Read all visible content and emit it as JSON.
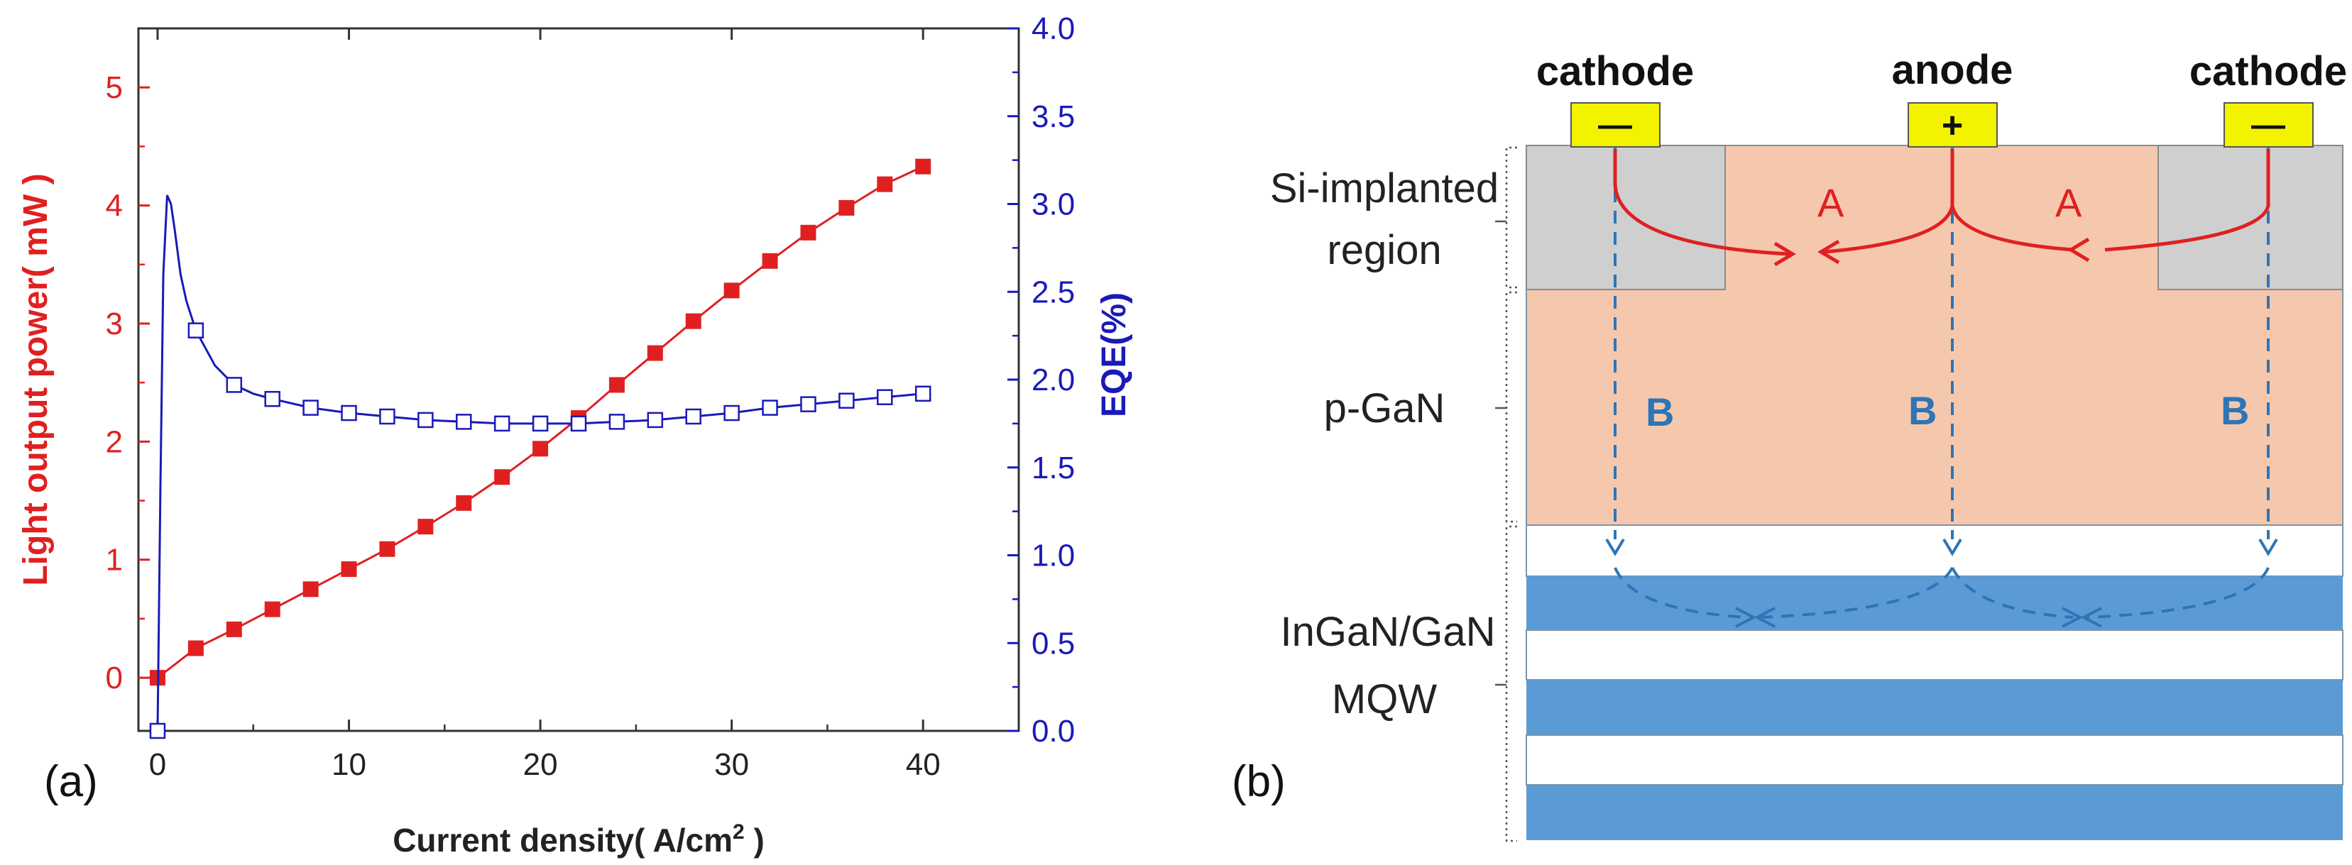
{
  "chart_data": [
    {
      "type": "line",
      "panel_label": "(a)",
      "xlabel": "Current density( A/cm",
      "xlabel_sup": "2",
      "xlabel_tail": " )",
      "ylabel_left": "Light output power( mW )",
      "ylabel_right": "EQE(%)",
      "xlim": [
        -1,
        45
      ],
      "ylim_left": [
        -0.45,
        5.5
      ],
      "ylim_right": [
        0,
        4
      ],
      "x_ticks": [
        "0",
        "10",
        "20",
        "30",
        "40"
      ],
      "x_tick_values": [
        0,
        10,
        20,
        30,
        40
      ],
      "y_left_ticks": [
        "0",
        "1",
        "2",
        "3",
        "4",
        "5"
      ],
      "y_left_tick_values": [
        0,
        1,
        2,
        3,
        4,
        5
      ],
      "y_right_ticks": [
        "0.0",
        "0.5",
        "1.0",
        "1.5",
        "2.0",
        "2.5",
        "3.0",
        "3.5",
        "4.0"
      ],
      "y_right_tick_values": [
        0,
        0.5,
        1,
        1.5,
        2,
        2.5,
        3,
        3.5,
        4
      ],
      "colors": {
        "left": "#e02020",
        "right": "#1a1ab8",
        "axis": "#333333"
      },
      "series": [
        {
          "name": "Light output power",
          "axis": "left",
          "marker": "filled-square",
          "x": [
            0,
            2,
            4,
            6,
            8,
            10,
            12,
            14,
            16,
            18,
            20,
            22,
            24,
            26,
            28,
            30,
            32,
            34,
            36,
            38,
            40
          ],
          "y": [
            0.0,
            0.25,
            0.41,
            0.58,
            0.75,
            0.92,
            1.09,
            1.28,
            1.48,
            1.7,
            1.94,
            2.2,
            2.48,
            2.75,
            3.02,
            3.28,
            3.53,
            3.77,
            3.98,
            4.18,
            4.33
          ]
        },
        {
          "name": "EQE",
          "axis": "right",
          "marker": "open-square",
          "x": [
            0,
            2,
            4,
            6,
            8,
            10,
            12,
            14,
            16,
            18,
            20,
            22,
            24,
            26,
            28,
            30,
            32,
            34,
            36,
            38,
            40
          ],
          "y": [
            0.0,
            2.28,
            1.97,
            1.89,
            1.84,
            1.81,
            1.79,
            1.77,
            1.76,
            1.75,
            1.75,
            1.75,
            1.76,
            1.77,
            1.79,
            1.81,
            1.84,
            1.86,
            1.88,
            1.9,
            1.92
          ],
          "curve": {
            "x": [
              0,
              0.15,
              0.3,
              0.5,
              0.7,
              0.9,
              1.2,
              1.5,
              2,
              3,
              4,
              5,
              6,
              8,
              10,
              12,
              14,
              16,
              18,
              20,
              22,
              24,
              26,
              28,
              30,
              32,
              34,
              36,
              38,
              40
            ],
            "y": [
              0.0,
              1.4,
              2.6,
              3.05,
              3.0,
              2.85,
              2.6,
              2.45,
              2.28,
              2.08,
              1.97,
              1.92,
              1.89,
              1.84,
              1.81,
              1.79,
              1.77,
              1.76,
              1.75,
              1.75,
              1.75,
              1.76,
              1.77,
              1.79,
              1.81,
              1.84,
              1.86,
              1.88,
              1.9,
              1.92
            ]
          }
        }
      ]
    }
  ],
  "diagram": {
    "panel_label": "(b)",
    "electrodes": [
      {
        "label": "cathode",
        "sign": "—"
      },
      {
        "label": "anode",
        "sign": "+"
      },
      {
        "label": "cathode",
        "sign": "—"
      }
    ],
    "region_labels": {
      "si_implanted_line1": "Si-implanted",
      "si_implanted_line2": "region",
      "pgan": "p-GaN",
      "mqw_line1": "InGaN/GaN",
      "mqw_line2": "MQW"
    },
    "path_labels": {
      "a": "A",
      "b": "B"
    },
    "colors": {
      "electrode": "#f3f300",
      "p_gan": "#f5c8ae",
      "si_region": "#cfcfcf",
      "mqw_well": "#5b9bd5",
      "path_a": "#e02020",
      "path_b": "#2e75b6"
    }
  }
}
